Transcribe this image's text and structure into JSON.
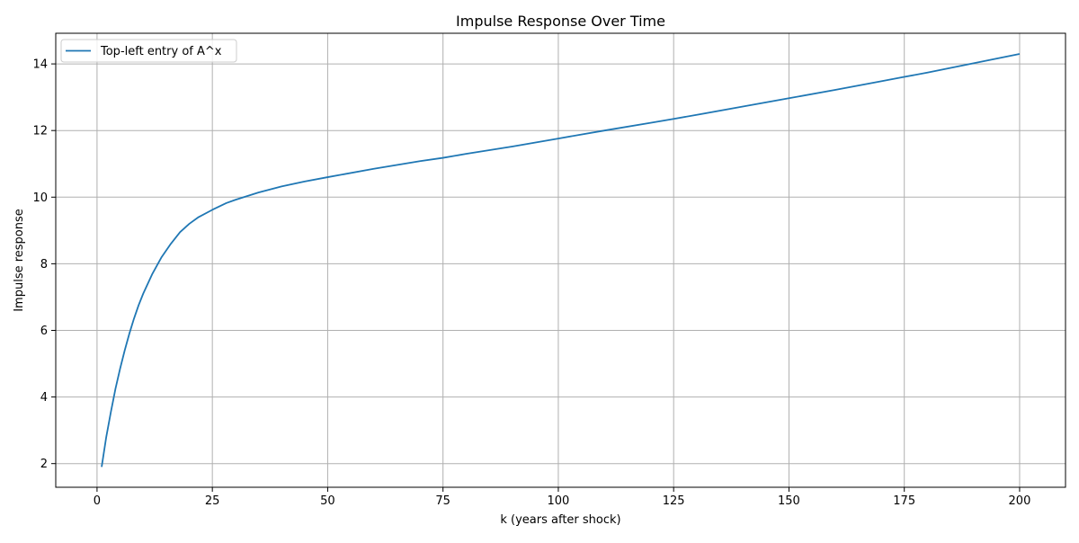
{
  "chart_data": {
    "type": "line",
    "title": "Impulse Response Over Time",
    "xlabel": "k (years after shock)",
    "ylabel": "Impulse response",
    "xlim": [
      -8.95,
      209.95
    ],
    "ylim": [
      1.29,
      14.92
    ],
    "xticks": [
      0,
      25,
      50,
      75,
      100,
      125,
      150,
      175,
      200
    ],
    "yticks": [
      2,
      4,
      6,
      8,
      10,
      12,
      14
    ],
    "grid": true,
    "legend_position": "upper-left",
    "colors": {
      "line": "#1f77b4",
      "grid": "#b0b0b0",
      "axis": "#000000"
    },
    "series": [
      {
        "name": "Top-left entry of A^x",
        "x": [
          1,
          2,
          3,
          4,
          5,
          6,
          7,
          8,
          9,
          10,
          12,
          14,
          16,
          18,
          20,
          22,
          25,
          28,
          30,
          35,
          40,
          45,
          50,
          60,
          70,
          75,
          80,
          90,
          100,
          110,
          120,
          125,
          130,
          140,
          150,
          160,
          170,
          175,
          180,
          190,
          200
        ],
        "y": [
          1.9,
          2.8,
          3.55,
          4.25,
          4.85,
          5.4,
          5.9,
          6.35,
          6.75,
          7.1,
          7.7,
          8.2,
          8.6,
          8.95,
          9.2,
          9.4,
          9.62,
          9.82,
          9.92,
          10.14,
          10.32,
          10.47,
          10.6,
          10.85,
          11.08,
          11.18,
          11.3,
          11.52,
          11.76,
          12.0,
          12.23,
          12.35,
          12.47,
          12.72,
          12.97,
          13.22,
          13.48,
          13.61,
          13.74,
          14.02,
          14.3
        ]
      }
    ]
  }
}
